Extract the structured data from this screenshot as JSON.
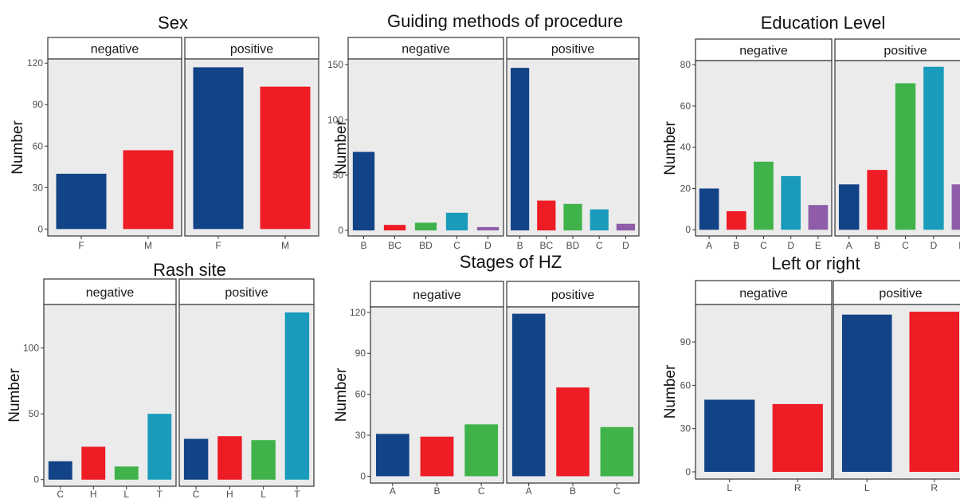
{
  "colors": {
    "navy": "#134387",
    "red": "#ee1c25",
    "green": "#3fb34a",
    "teal": "#1a9bbb",
    "purple": "#8e5ca8",
    "panel": "#ebebeb",
    "strip": "#ffffff"
  },
  "chart_data": [
    {
      "type": "bar",
      "title": "Sex",
      "ylabel": "Number",
      "facets": [
        "negative",
        "positive"
      ],
      "categories": [
        "F",
        "M"
      ],
      "bar_colors": [
        "#134387",
        "#ee1c25"
      ],
      "series": [
        {
          "name": "negative",
          "values": [
            40,
            57
          ]
        },
        {
          "name": "positive",
          "values": [
            117,
            103
          ]
        }
      ],
      "yticks": [
        0,
        30,
        60,
        90,
        120
      ],
      "ylim": [
        -5,
        123
      ]
    },
    {
      "type": "bar",
      "title": "Guiding methods of procedure",
      "ylabel": "Number",
      "facets": [
        "negative",
        "positive"
      ],
      "categories": [
        "B",
        "BC",
        "BD",
        "C",
        "D"
      ],
      "bar_colors": [
        "#134387",
        "#ee1c25",
        "#3fb34a",
        "#1a9bbb",
        "#8e5ca8"
      ],
      "series": [
        {
          "name": "negative",
          "values": [
            71,
            5,
            7,
            16,
            3
          ]
        },
        {
          "name": "positive",
          "values": [
            147,
            27,
            24,
            19,
            6
          ]
        }
      ],
      "yticks": [
        0,
        50,
        100,
        150
      ],
      "ylim": [
        -5,
        155
      ]
    },
    {
      "type": "bar",
      "title": "Education Level",
      "ylabel": "Number",
      "facets": [
        "negative",
        "positive"
      ],
      "categories": [
        "A",
        "B",
        "C",
        "D",
        "E"
      ],
      "bar_colors": [
        "#134387",
        "#ee1c25",
        "#3fb34a",
        "#1a9bbb",
        "#8e5ca8"
      ],
      "series": [
        {
          "name": "negative",
          "values": [
            20,
            9,
            33,
            26,
            12
          ]
        },
        {
          "name": "positive",
          "values": [
            22,
            29,
            71,
            79,
            22
          ]
        }
      ],
      "yticks": [
        0,
        20,
        40,
        60,
        80
      ],
      "ylim": [
        -3,
        82
      ]
    },
    {
      "type": "bar",
      "title": "Rash site",
      "ylabel": "Number",
      "facets": [
        "negative",
        "positive"
      ],
      "categories": [
        "C",
        "H",
        "L",
        "T"
      ],
      "bar_colors": [
        "#134387",
        "#ee1c25",
        "#3fb34a",
        "#1a9bbb"
      ],
      "series": [
        {
          "name": "negative",
          "values": [
            14,
            25,
            10,
            50
          ]
        },
        {
          "name": "positive",
          "values": [
            31,
            33,
            30,
            127
          ]
        }
      ],
      "yticks": [
        0,
        50,
        100
      ],
      "ylim": [
        -5,
        133
      ]
    },
    {
      "type": "bar",
      "title": "Stages of HZ",
      "ylabel": "Number",
      "facets": [
        "negative",
        "positive"
      ],
      "categories": [
        "A",
        "B",
        "C"
      ],
      "bar_colors": [
        "#134387",
        "#ee1c25",
        "#3fb34a"
      ],
      "series": [
        {
          "name": "negative",
          "values": [
            31,
            29,
            38
          ]
        },
        {
          "name": "positive",
          "values": [
            119,
            65,
            36
          ]
        }
      ],
      "yticks": [
        0,
        30,
        60,
        90,
        120
      ],
      "ylim": [
        -5,
        124
      ]
    },
    {
      "type": "bar",
      "title": "Left or right",
      "ylabel": "Number",
      "facets": [
        "negative",
        "positive"
      ],
      "categories": [
        "L",
        "R"
      ],
      "bar_colors": [
        "#134387",
        "#ee1c25"
      ],
      "series": [
        {
          "name": "negative",
          "values": [
            50,
            47
          ]
        },
        {
          "name": "positive",
          "values": [
            109,
            111
          ]
        }
      ],
      "yticks": [
        0,
        30,
        60,
        90
      ],
      "ylim": [
        -5,
        116
      ]
    }
  ]
}
